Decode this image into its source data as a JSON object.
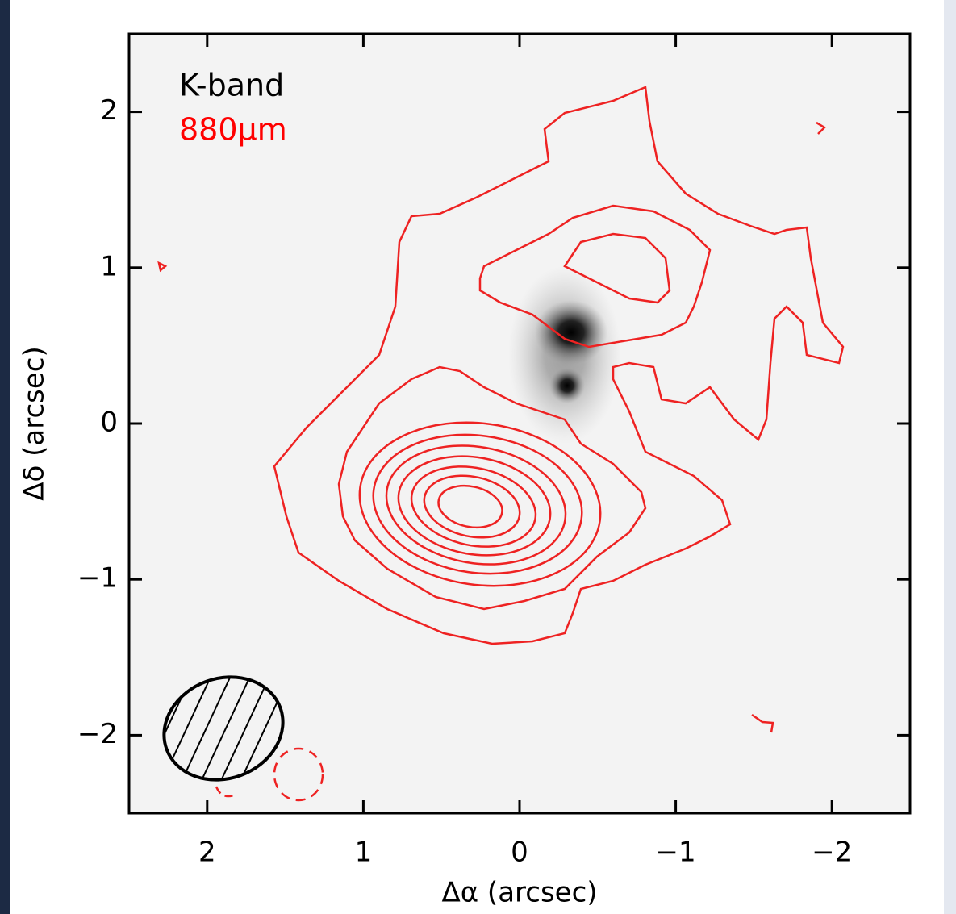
{
  "chart_data": {
    "type": "contour",
    "xlabel": "Δα (arcsec)",
    "ylabel": "Δδ (arcsec)",
    "annotations": [
      {
        "text": "K-band",
        "color": "#000000"
      },
      {
        "text": "880μm",
        "color": "#ff0000"
      }
    ],
    "xlim": [
      2.5,
      -2.5
    ],
    "ylim": [
      -2.5,
      2.5
    ],
    "xticks": [
      2,
      1,
      0,
      {
        "value": -1,
        "label": "−1"
      },
      {
        "value": -2,
        "label": "−2"
      }
    ],
    "yticks": [
      2,
      1,
      0,
      {
        "value": -1,
        "label": "−1"
      },
      {
        "value": -2,
        "label": "−2"
      }
    ],
    "contour_color": "#ee2222"
  }
}
